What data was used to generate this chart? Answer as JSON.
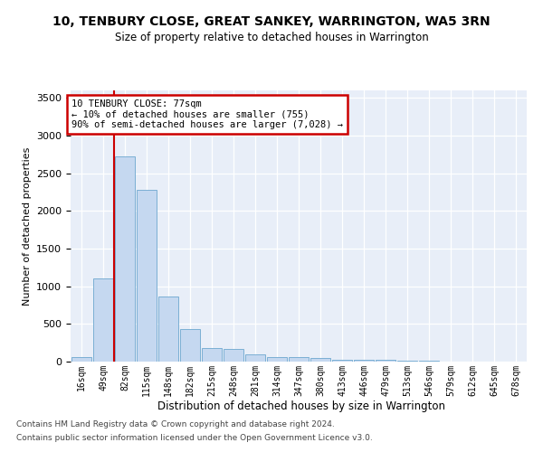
{
  "title": "10, TENBURY CLOSE, GREAT SANKEY, WARRINGTON, WA5 3RN",
  "subtitle": "Size of property relative to detached houses in Warrington",
  "xlabel": "Distribution of detached houses by size in Warrington",
  "ylabel": "Number of detached properties",
  "bar_color": "#c5d8f0",
  "bar_edge_color": "#7bafd4",
  "background_color": "#e8eef8",
  "categories": [
    "16sqm",
    "49sqm",
    "82sqm",
    "115sqm",
    "148sqm",
    "182sqm",
    "215sqm",
    "248sqm",
    "281sqm",
    "314sqm",
    "347sqm",
    "380sqm",
    "413sqm",
    "446sqm",
    "479sqm",
    "513sqm",
    "546sqm",
    "579sqm",
    "612sqm",
    "645sqm",
    "678sqm"
  ],
  "values": [
    55,
    1100,
    2730,
    2280,
    870,
    430,
    175,
    170,
    95,
    65,
    55,
    45,
    30,
    25,
    20,
    10,
    8,
    5,
    4,
    3,
    2
  ],
  "ylim": [
    0,
    3600
  ],
  "yticks": [
    0,
    500,
    1000,
    1500,
    2000,
    2500,
    3000,
    3500
  ],
  "vline_x": 1.5,
  "vline_color": "#cc0000",
  "annotation_line1": "10 TENBURY CLOSE: 77sqm",
  "annotation_line2": "← 10% of detached houses are smaller (755)",
  "annotation_line3": "90% of semi-detached houses are larger (7,028) →",
  "annotation_box_facecolor": "#ffffff",
  "annotation_box_edgecolor": "#cc0000",
  "footer_line1": "Contains HM Land Registry data © Crown copyright and database right 2024.",
  "footer_line2": "Contains public sector information licensed under the Open Government Licence v3.0."
}
